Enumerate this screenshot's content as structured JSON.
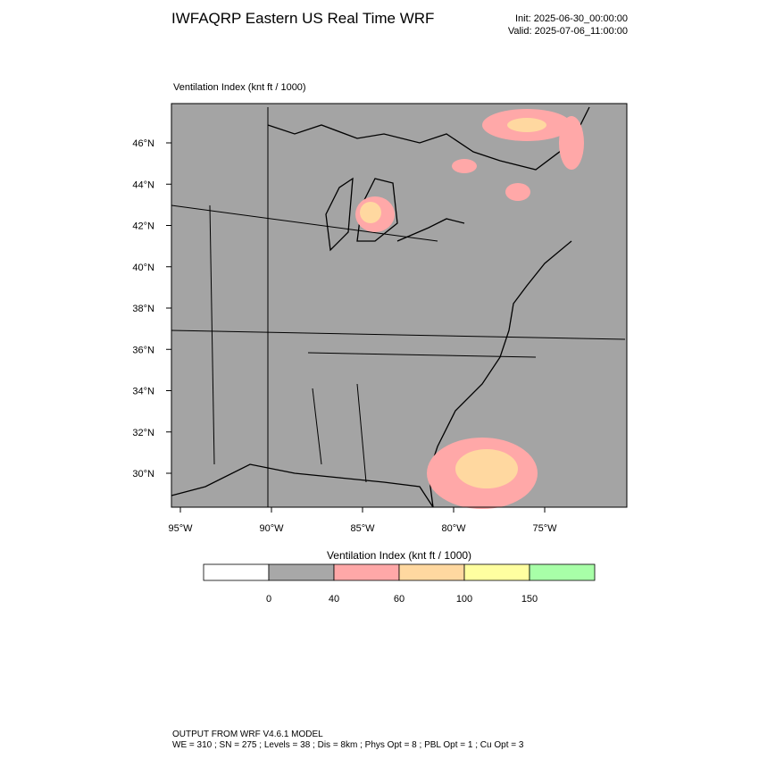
{
  "header": {
    "title": "IWFAQRP Eastern US Real Time WRF",
    "init": "Init: 2025-06-30_00:00:00",
    "valid": "Valid: 2025-07-06_11:00:00"
  },
  "map": {
    "subtitle": "Ventilation Index   (knt ft / 1000)",
    "lat_labels": [
      "46°N",
      "44°N",
      "42°N",
      "40°N",
      "38°N",
      "36°N",
      "34°N",
      "32°N",
      "30°N"
    ],
    "lon_labels": [
      "95°W",
      "90°W",
      "85°W",
      "80°W",
      "75°W"
    ]
  },
  "colorbar": {
    "title": "Ventilation Index  (knt ft / 1000)",
    "colors": [
      "#ffffff",
      "#a8a8a8",
      "#ffa8a8",
      "#ffd8a0",
      "#ffffa0",
      "#a8ffa8"
    ],
    "labels": [
      0,
      40,
      60,
      100,
      150
    ]
  },
  "footer": [
    "OUTPUT FROM WRF V4.6.1 MODEL",
    "WE = 310 ; SN = 275 ; Levels = 38 ; Dis = 8km ; Phys Opt = 8 ; PBL Opt = 1 ; Cu Opt = 3"
  ]
}
